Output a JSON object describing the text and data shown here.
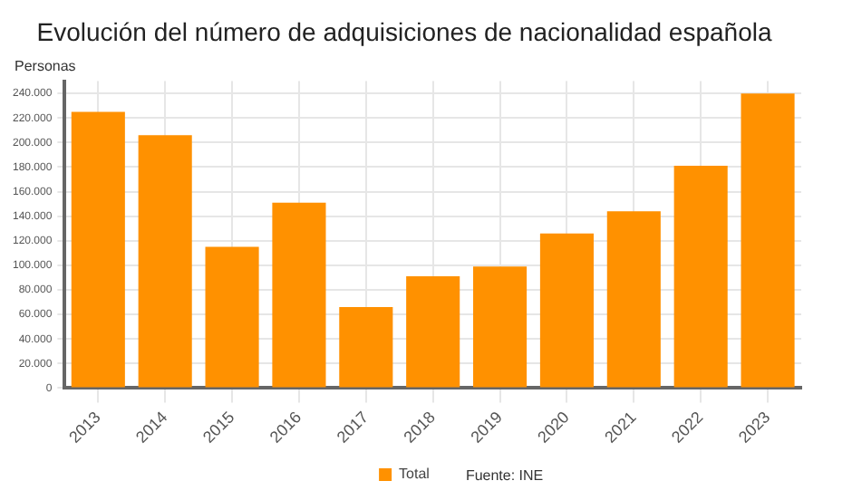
{
  "chart_data": {
    "type": "bar",
    "title": "Evolución del número de adquisiciones de nacionalidad española",
    "ylabel": "Personas",
    "categories": [
      "2013",
      "2014",
      "2015",
      "2016",
      "2017",
      "2018",
      "2019",
      "2020",
      "2021",
      "2022",
      "2023"
    ],
    "series": [
      {
        "name": "Total",
        "color": "#ff9100",
        "values": [
          225000,
          206000,
          115000,
          151000,
          66000,
          91000,
          99000,
          126000,
          144000,
          181000,
          240000
        ]
      }
    ],
    "ylim": [
      0,
      250000
    ],
    "yticks": [
      {
        "value": 0,
        "label": "0"
      },
      {
        "value": 20000,
        "label": "20.000"
      },
      {
        "value": 40000,
        "label": "40.000"
      },
      {
        "value": 60000,
        "label": "60.000"
      },
      {
        "value": 80000,
        "label": "80.000"
      },
      {
        "value": 100000,
        "label": "100.000"
      },
      {
        "value": 120000,
        "label": "120.000"
      },
      {
        "value": 140000,
        "label": "140.000"
      },
      {
        "value": 160000,
        "label": "160.000"
      },
      {
        "value": 180000,
        "label": "180.000"
      },
      {
        "value": 200000,
        "label": "200.000"
      },
      {
        "value": 220000,
        "label": "220.000"
      },
      {
        "value": 240000,
        "label": "240.000"
      }
    ],
    "grid": true,
    "legend": "bottom",
    "annotations": [
      "Fuente: INE"
    ]
  }
}
